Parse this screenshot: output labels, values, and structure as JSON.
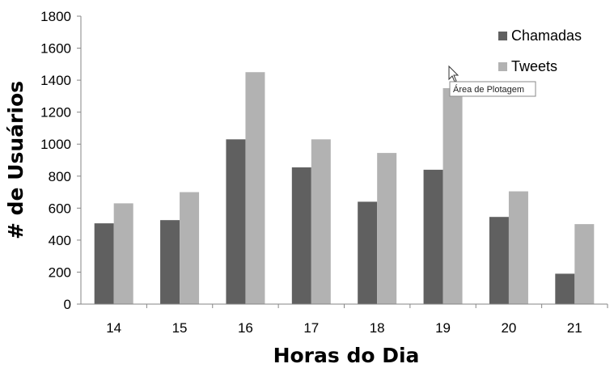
{
  "chart_data": {
    "type": "bar",
    "categories": [
      "14",
      "15",
      "16",
      "17",
      "18",
      "19",
      "20",
      "21"
    ],
    "series": [
      {
        "name": "Chamadas",
        "color": "#606060",
        "values": [
          505,
          525,
          1030,
          855,
          640,
          840,
          545,
          190
        ]
      },
      {
        "name": "Tweets",
        "color": "#b2b2b2",
        "values": [
          630,
          700,
          1450,
          1030,
          945,
          1350,
          705,
          500
        ]
      }
    ],
    "title": "",
    "xlabel": "Horas do Dia",
    "ylabel": "# de Usuários",
    "ylim": [
      0,
      1800
    ],
    "yticks": [
      0,
      200,
      400,
      600,
      800,
      1000,
      1200,
      1400,
      1600,
      1800
    ],
    "grid": false,
    "legend_position": "top-right"
  },
  "tooltip": {
    "text": "Área de Plotagem",
    "icon": "mouse-pointer-icon"
  }
}
